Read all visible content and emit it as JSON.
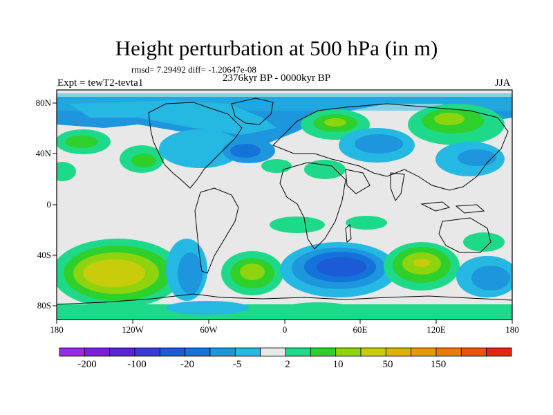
{
  "plot": {
    "title": "Height perturbation at 500 hPa (in m)",
    "stats": "rmsd= 7.29492 diff= -1.20647e-08",
    "experiment": "Expt = tewT2-tevta1",
    "period": "2376kyr BP - 0000kyr BP",
    "season": "JJA"
  },
  "axes": {
    "lat_labels": [
      "80N",
      "40N",
      "0",
      "40S",
      "80S"
    ],
    "lon_labels": [
      "180",
      "120W",
      "60W",
      "0",
      "60E",
      "120E",
      "180"
    ]
  },
  "colorbar": {
    "colors": [
      "#9a29e6",
      "#7c20d8",
      "#5a25d0",
      "#3b3ad8",
      "#1c5ad6",
      "#1472d8",
      "#1d96de",
      "#24b8e2",
      "#e8e8e8",
      "#1ed98a",
      "#2fd02c",
      "#8ed40e",
      "#c8cc0a",
      "#dcb205",
      "#e69a0a",
      "#e97a0c",
      "#e8540c",
      "#e3260d"
    ],
    "labels": [
      "-200",
      "-100",
      "-20",
      "-5",
      "2",
      "10",
      "50",
      "150"
    ]
  },
  "colors": {
    "background": "#ffffff",
    "frame": "#000000",
    "neutral": "#e8e8e8"
  }
}
